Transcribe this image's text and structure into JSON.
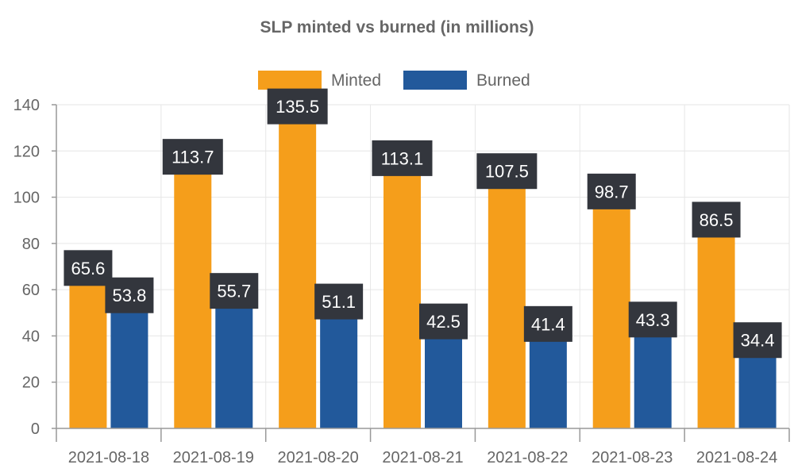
{
  "chart_data": {
    "type": "bar",
    "title": "SLP minted vs burned (in millions)",
    "xlabel": "",
    "ylabel": "",
    "categories": [
      "2021-08-18",
      "2021-08-19",
      "2021-08-20",
      "2021-08-21",
      "2021-08-22",
      "2021-08-23",
      "2021-08-24"
    ],
    "series": [
      {
        "name": "Minted",
        "color": "#f59e1b",
        "values": [
          65.6,
          113.7,
          135.5,
          113.1,
          107.5,
          98.7,
          86.5
        ]
      },
      {
        "name": "Burned",
        "color": "#22599b",
        "values": [
          53.8,
          55.7,
          51.1,
          42.5,
          41.4,
          43.3,
          34.4
        ]
      }
    ],
    "ylim": [
      0,
      140
    ],
    "yticks": [
      0,
      20,
      40,
      60,
      80,
      100,
      120,
      140
    ],
    "grid": true,
    "legend_position": "top",
    "data_labels": true,
    "label_background": "#33363d"
  }
}
